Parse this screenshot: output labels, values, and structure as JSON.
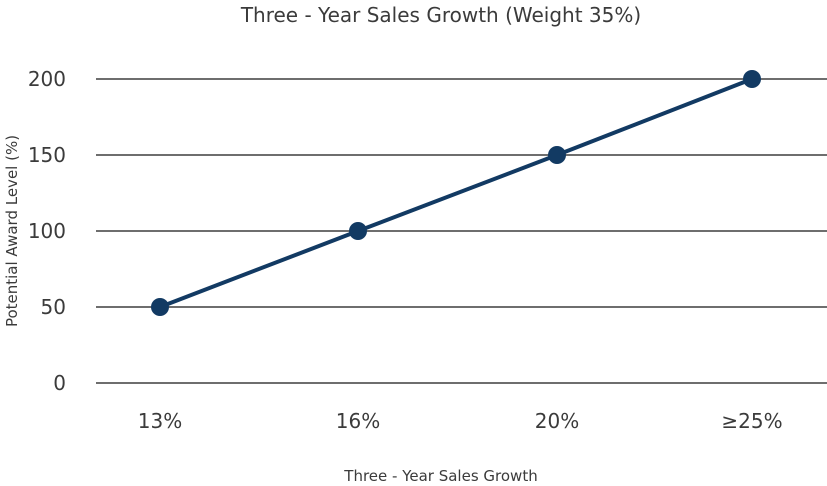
{
  "chart_data": {
    "type": "line",
    "title": "Three - Year Sales Growth (Weight 35%)",
    "xlabel": "Three - Year Sales Growth",
    "ylabel": "Potential Award Level (%)",
    "categories": [
      "13%",
      "16%",
      "20%",
      "≥25%"
    ],
    "series": [
      {
        "values": [
          50,
          100,
          150,
          200
        ]
      }
    ],
    "ylim": [
      0,
      200
    ],
    "yticks": [
      0,
      50,
      100,
      150,
      200
    ],
    "grid": true,
    "legend": "none",
    "colors": {
      "line": "#123a63",
      "marker": "#123a63",
      "gridline": "#3f3f3f",
      "text": "#3b3b3b"
    }
  }
}
